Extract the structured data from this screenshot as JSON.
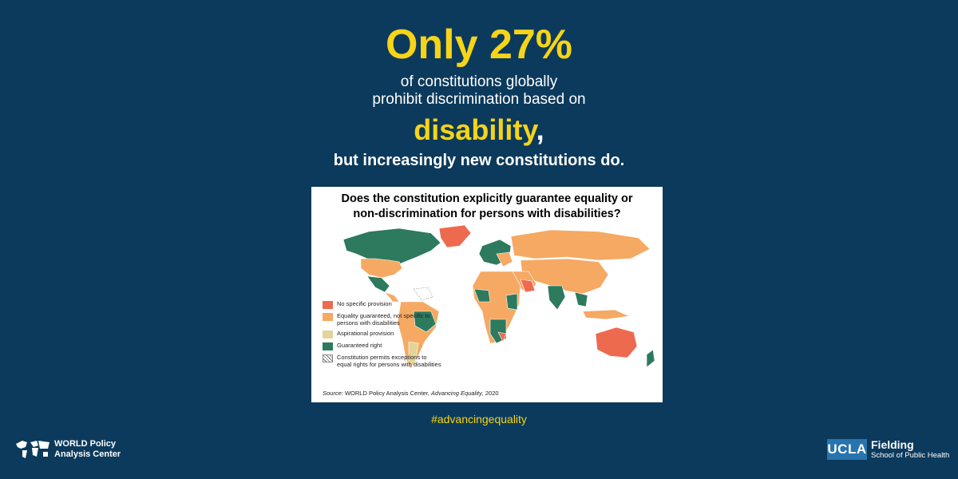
{
  "headline": "Only 27%",
  "subtitle_line1": "of constitutions globally",
  "subtitle_line2": "prohibit discrimination based on",
  "keyword": "disability",
  "keyword_suffix": ",",
  "tagline": "but increasingly new constitutions do.",
  "map": {
    "title_line1": "Does the constitution explicitly guarantee equality or",
    "title_line2": "non-discrimination for persons with disabilities?",
    "legend": [
      {
        "label": "No specific provision",
        "color": "#ee6a4f"
      },
      {
        "label": "Equality guaranteed, not specific to persons with disabilities",
        "color": "#f5a963"
      },
      {
        "label": "Aspirational provision",
        "color": "#e2d49b"
      },
      {
        "label": "Guaranteed right",
        "color": "#2d7a5e"
      },
      {
        "label": "Constitution permits exceptions to equal rights for persons with disabilities",
        "color": "hatched"
      }
    ],
    "source_prefix": "Source:",
    "source_org": " WORLD Policy Analysis Center, ",
    "source_title": "Advancing Equality",
    "source_year": ", 2020"
  },
  "hashtag": "#advancingequality",
  "footer_left": {
    "line1": "WORLD Policy",
    "line2": "Analysis Center",
    "icon": "world-map-icon"
  },
  "footer_right": {
    "ucla": "UCLA",
    "line1": "Fielding",
    "line2": "School of Public Health"
  },
  "colors": {
    "background": "#0c3a5c",
    "accent": "#f6d417"
  }
}
